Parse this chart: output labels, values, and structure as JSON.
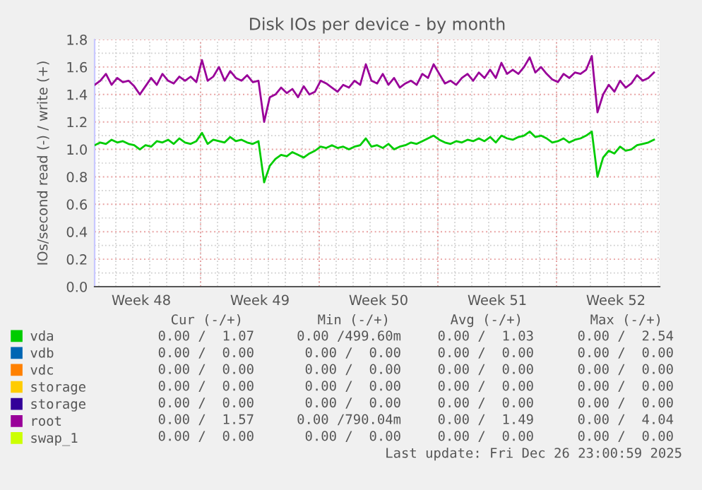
{
  "chart_data": {
    "type": "line",
    "title": "Disk IOs per device - by month",
    "ylabel": "IOs/second read (-) / write (+)",
    "x": [
      "2025-11-24T18:00",
      "2025-11-25T02:00",
      "2025-11-25T10:00",
      "2025-11-25T18:00",
      "2025-11-26T02:00",
      "2025-11-26T10:00",
      "2025-11-26T18:00",
      "2025-11-27T02:00",
      "2025-11-27T10:00",
      "2025-11-27T18:00",
      "2025-11-28T02:00",
      "2025-11-28T10:00",
      "2025-11-28T18:00",
      "2025-11-29T02:00",
      "2025-11-29T10:00",
      "2025-11-29T18:00",
      "2025-11-30T02:00",
      "2025-11-30T10:00",
      "2025-11-30T18:00",
      "2025-12-01T02:00",
      "2025-12-01T10:00",
      "2025-12-01T18:00",
      "2025-12-02T02:00",
      "2025-12-02T10:00",
      "2025-12-02T18:00",
      "2025-12-03T02:00",
      "2025-12-03T10:00",
      "2025-12-03T18:00",
      "2025-12-04T02:00",
      "2025-12-04T10:00",
      "2025-12-04T18:00",
      "2025-12-05T02:00",
      "2025-12-05T10:00",
      "2025-12-05T18:00",
      "2025-12-06T02:00",
      "2025-12-06T10:00",
      "2025-12-06T18:00",
      "2025-12-07T02:00",
      "2025-12-07T10:00",
      "2025-12-07T18:00",
      "2025-12-08T02:00",
      "2025-12-08T10:00",
      "2025-12-08T18:00",
      "2025-12-09T02:00",
      "2025-12-09T10:00",
      "2025-12-09T18:00",
      "2025-12-10T02:00",
      "2025-12-10T10:00",
      "2025-12-10T18:00",
      "2025-12-11T02:00",
      "2025-12-11T10:00",
      "2025-12-11T18:00",
      "2025-12-12T02:00",
      "2025-12-12T10:00",
      "2025-12-12T18:00",
      "2025-12-13T02:00",
      "2025-12-13T10:00",
      "2025-12-13T18:00",
      "2025-12-14T02:00",
      "2025-12-14T10:00",
      "2025-12-14T18:00",
      "2025-12-15T02:00",
      "2025-12-15T10:00",
      "2025-12-15T18:00",
      "2025-12-16T02:00",
      "2025-12-16T10:00",
      "2025-12-16T18:00",
      "2025-12-17T02:00",
      "2025-12-17T10:00",
      "2025-12-17T18:00",
      "2025-12-18T02:00",
      "2025-12-18T10:00",
      "2025-12-18T18:00",
      "2025-12-19T02:00",
      "2025-12-19T10:00",
      "2025-12-19T18:00",
      "2025-12-20T02:00",
      "2025-12-20T10:00",
      "2025-12-20T18:00",
      "2025-12-21T02:00",
      "2025-12-21T10:00",
      "2025-12-21T18:00",
      "2025-12-22T02:00",
      "2025-12-22T10:00",
      "2025-12-22T18:00",
      "2025-12-23T02:00",
      "2025-12-23T10:00",
      "2025-12-23T18:00",
      "2025-12-24T02:00",
      "2025-12-24T10:00",
      "2025-12-24T18:00",
      "2025-12-25T02:00",
      "2025-12-25T10:00",
      "2025-12-25T18:00",
      "2025-12-26T02:00",
      "2025-12-26T10:00",
      "2025-12-26T18:00",
      "2025-12-27T02:00",
      "2025-12-27T10:00",
      "2025-12-27T18:00"
    ],
    "series": [
      {
        "name": "vda",
        "color": "#00cc00",
        "values": [
          1.03,
          1.05,
          1.04,
          1.07,
          1.05,
          1.06,
          1.04,
          1.03,
          1.0,
          1.03,
          1.02,
          1.06,
          1.05,
          1.07,
          1.04,
          1.08,
          1.05,
          1.04,
          1.06,
          1.12,
          1.04,
          1.07,
          1.06,
          1.05,
          1.09,
          1.06,
          1.07,
          1.05,
          1.04,
          1.06,
          0.76,
          0.88,
          0.93,
          0.96,
          0.95,
          0.98,
          0.96,
          0.94,
          0.97,
          0.99,
          1.02,
          1.01,
          1.03,
          1.01,
          1.02,
          1.0,
          1.02,
          1.03,
          1.08,
          1.02,
          1.03,
          1.01,
          1.04,
          1.0,
          1.02,
          1.03,
          1.05,
          1.04,
          1.06,
          1.08,
          1.1,
          1.07,
          1.05,
          1.04,
          1.06,
          1.05,
          1.07,
          1.06,
          1.08,
          1.06,
          1.09,
          1.05,
          1.1,
          1.08,
          1.07,
          1.09,
          1.1,
          1.13,
          1.09,
          1.1,
          1.08,
          1.05,
          1.06,
          1.08,
          1.05,
          1.07,
          1.08,
          1.1,
          1.13,
          0.8,
          0.94,
          0.99,
          0.97,
          1.02,
          0.99,
          1.0,
          1.03,
          1.04,
          1.05,
          1.07
        ]
      },
      {
        "name": "vdb",
        "color": "#0066b3",
        "values": [
          null,
          null,
          null,
          null,
          null,
          null,
          null,
          null,
          null,
          null,
          null,
          null,
          null,
          null,
          null,
          null,
          null,
          null,
          null,
          null,
          null,
          null,
          null,
          null,
          null,
          null,
          null,
          null,
          null,
          null,
          null,
          null,
          null,
          null,
          null,
          null,
          null,
          null,
          null,
          null,
          null,
          null,
          null,
          null,
          null,
          null,
          null,
          null,
          null,
          null,
          null,
          null,
          null,
          null,
          null,
          null,
          null,
          null,
          null,
          null,
          null,
          null,
          null,
          null,
          null,
          null,
          null,
          null,
          null,
          null,
          null,
          null,
          null,
          null,
          null,
          null,
          null,
          null,
          null,
          null,
          null,
          null,
          null,
          null,
          null,
          null,
          null,
          null,
          null,
          null,
          null,
          null,
          null,
          null,
          null,
          null,
          null,
          null,
          null,
          null
        ]
      },
      {
        "name": "vdc",
        "color": "#ff8000",
        "values": [
          null,
          null,
          null,
          null,
          null,
          null,
          null,
          null,
          null,
          null,
          null,
          null,
          null,
          null,
          null,
          null,
          null,
          null,
          null,
          null,
          null,
          null,
          null,
          null,
          null,
          null,
          null,
          null,
          null,
          null,
          null,
          null,
          null,
          null,
          null,
          null,
          null,
          null,
          null,
          null,
          null,
          null,
          null,
          null,
          null,
          null,
          null,
          null,
          null,
          null,
          null,
          null,
          null,
          null,
          null,
          null,
          null,
          null,
          null,
          null,
          null,
          null,
          null,
          null,
          null,
          null,
          null,
          null,
          null,
          null,
          null,
          null,
          null,
          null,
          null,
          null,
          null,
          null,
          null,
          null,
          null,
          null,
          null,
          null,
          null,
          null,
          null,
          null,
          null,
          null,
          null,
          null,
          null,
          null,
          null,
          null,
          null,
          null,
          null,
          null
        ]
      },
      {
        "name": "storage",
        "color": "#ffcc00",
        "values": [
          null,
          null,
          null,
          null,
          null,
          null,
          null,
          null,
          null,
          null,
          null,
          null,
          null,
          null,
          null,
          null,
          null,
          null,
          null,
          null,
          null,
          null,
          null,
          null,
          null,
          null,
          null,
          null,
          null,
          null,
          null,
          null,
          null,
          null,
          null,
          null,
          null,
          null,
          null,
          null,
          null,
          null,
          null,
          null,
          null,
          null,
          null,
          null,
          null,
          null,
          null,
          null,
          null,
          null,
          null,
          null,
          null,
          null,
          null,
          null,
          null,
          null,
          null,
          null,
          null,
          null,
          null,
          null,
          null,
          null,
          null,
          null,
          null,
          null,
          null,
          null,
          null,
          null,
          null,
          null,
          null,
          null,
          null,
          null,
          null,
          null,
          null,
          null,
          null,
          null,
          null,
          null,
          null,
          null,
          null,
          null,
          null,
          null,
          null,
          null
        ]
      },
      {
        "name": "storage",
        "color": "#330099",
        "values": [
          null,
          null,
          null,
          null,
          null,
          null,
          null,
          null,
          null,
          null,
          null,
          null,
          null,
          null,
          null,
          null,
          null,
          null,
          null,
          null,
          null,
          null,
          null,
          null,
          null,
          null,
          null,
          null,
          null,
          null,
          null,
          null,
          null,
          null,
          null,
          null,
          null,
          null,
          null,
          null,
          null,
          null,
          null,
          null,
          null,
          null,
          null,
          null,
          null,
          null,
          null,
          null,
          null,
          null,
          null,
          null,
          null,
          null,
          null,
          null,
          null,
          null,
          null,
          null,
          null,
          null,
          null,
          null,
          null,
          null,
          null,
          null,
          null,
          null,
          null,
          null,
          null,
          null,
          null,
          null,
          null,
          null,
          null,
          null,
          null,
          null,
          null,
          null,
          null,
          null,
          null,
          null,
          null,
          null,
          null,
          null,
          null,
          null,
          null,
          null
        ]
      },
      {
        "name": "root",
        "color": "#990099",
        "values": [
          1.47,
          1.5,
          1.55,
          1.47,
          1.52,
          1.49,
          1.5,
          1.46,
          1.4,
          1.46,
          1.52,
          1.47,
          1.55,
          1.5,
          1.48,
          1.53,
          1.5,
          1.53,
          1.49,
          1.65,
          1.5,
          1.53,
          1.6,
          1.5,
          1.57,
          1.52,
          1.5,
          1.54,
          1.49,
          1.5,
          1.2,
          1.38,
          1.4,
          1.45,
          1.41,
          1.44,
          1.38,
          1.46,
          1.4,
          1.42,
          1.5,
          1.48,
          1.45,
          1.42,
          1.47,
          1.45,
          1.5,
          1.47,
          1.62,
          1.5,
          1.48,
          1.55,
          1.47,
          1.52,
          1.45,
          1.48,
          1.5,
          1.47,
          1.55,
          1.52,
          1.62,
          1.55,
          1.48,
          1.5,
          1.47,
          1.52,
          1.55,
          1.5,
          1.56,
          1.52,
          1.58,
          1.52,
          1.63,
          1.55,
          1.58,
          1.55,
          1.6,
          1.67,
          1.56,
          1.6,
          1.55,
          1.51,
          1.49,
          1.55,
          1.52,
          1.56,
          1.55,
          1.58,
          1.68,
          1.27,
          1.4,
          1.47,
          1.42,
          1.5,
          1.45,
          1.48,
          1.54,
          1.5,
          1.52,
          1.56
        ]
      },
      {
        "name": "swap_1",
        "color": "#ccff00",
        "values": [
          null,
          null,
          null,
          null,
          null,
          null,
          null,
          null,
          null,
          null,
          null,
          null,
          null,
          null,
          null,
          null,
          null,
          null,
          null,
          null,
          null,
          null,
          null,
          null,
          null,
          null,
          null,
          null,
          null,
          null,
          null,
          null,
          null,
          null,
          null,
          null,
          null,
          null,
          null,
          null,
          null,
          null,
          null,
          null,
          null,
          null,
          null,
          null,
          null,
          null,
          null,
          null,
          null,
          null,
          null,
          null,
          null,
          null,
          null,
          null,
          null,
          null,
          null,
          null,
          null,
          null,
          null,
          null,
          null,
          null,
          null,
          null,
          null,
          null,
          null,
          null,
          null,
          null,
          null,
          null,
          null,
          null,
          null,
          null,
          null,
          null,
          null,
          null,
          null,
          null,
          null,
          null,
          null,
          null,
          null,
          null,
          null,
          null,
          null,
          null
        ]
      }
    ],
    "xlim": [
      "2025-11-24T18:00",
      "2025-12-28T02:00"
    ],
    "xticks": [
      {
        "value": "2025-11-27T12:00",
        "label": "Week 48"
      },
      {
        "value": "2025-12-01T00:00",
        "label": null
      },
      {
        "value": "2025-12-04T12:00",
        "label": "Week 49"
      },
      {
        "value": "2025-12-08T00:00",
        "label": null
      },
      {
        "value": "2025-12-11T12:00",
        "label": "Week 50"
      },
      {
        "value": "2025-12-15T00:00",
        "label": null
      },
      {
        "value": "2025-12-18T12:00",
        "label": "Week 51"
      },
      {
        "value": "2025-12-22T00:00",
        "label": null
      },
      {
        "value": "2025-12-25T12:00",
        "label": "Week 52"
      }
    ],
    "ylim": [
      0,
      1.8
    ],
    "yticks": [
      {
        "value": 0,
        "label": "0.0"
      },
      {
        "value": 0.1,
        "label": null
      },
      {
        "value": 0.2,
        "label": "0.2"
      },
      {
        "value": 0.3,
        "label": null
      },
      {
        "value": 0.4,
        "label": "0.4"
      },
      {
        "value": 0.5,
        "label": null
      },
      {
        "value": 0.6,
        "label": "0.6"
      },
      {
        "value": 0.7,
        "label": null
      },
      {
        "value": 0.8,
        "label": "0.8"
      },
      {
        "value": 0.9,
        "label": null
      },
      {
        "value": 1.0,
        "label": "1.0"
      },
      {
        "value": 1.1,
        "label": null
      },
      {
        "value": 1.2,
        "label": "1.2"
      },
      {
        "value": 1.3,
        "label": null
      },
      {
        "value": 1.4,
        "label": "1.4"
      },
      {
        "value": 1.5,
        "label": null
      },
      {
        "value": 1.6,
        "label": "1.6"
      },
      {
        "value": 1.7,
        "label": null
      },
      {
        "value": 1.8,
        "label": "1.8"
      }
    ],
    "grid": true,
    "legend": "bottom",
    "marker": "none",
    "line_style": "solid",
    "annotations": [
      "Cur (-/+)",
      "Min (-/+)",
      "Avg (-/+)",
      "Max (-/+)",
      "0.00 /  1.07",
      "0.00 /499.60m",
      "0.00 /  1.03",
      "0.00 /  2.54",
      "0.00 /  0.00",
      "0.00 /  0.00",
      "0.00 /  0.00",
      "0.00 /  0.00",
      "0.00 /  0.00",
      "0.00 /  0.00",
      "0.00 /  0.00",
      "0.00 /  0.00",
      "0.00 /  0.00",
      "0.00 /  0.00",
      "0.00 /  0.00",
      "0.00 /  0.00",
      "0.00 /  0.00",
      "0.00 /  0.00",
      "0.00 /  0.00",
      "0.00 /  0.00",
      "0.00 /  1.57",
      "0.00 /790.04m",
      "0.00 /  1.49",
      "0.00 /  4.04",
      "0.00 /  0.00",
      "0.00 /  0.00",
      "0.00 /  0.00",
      "0.00 /  0.00",
      "Last update: Fri Dec 26 23:00:59 2025"
    ]
  }
}
